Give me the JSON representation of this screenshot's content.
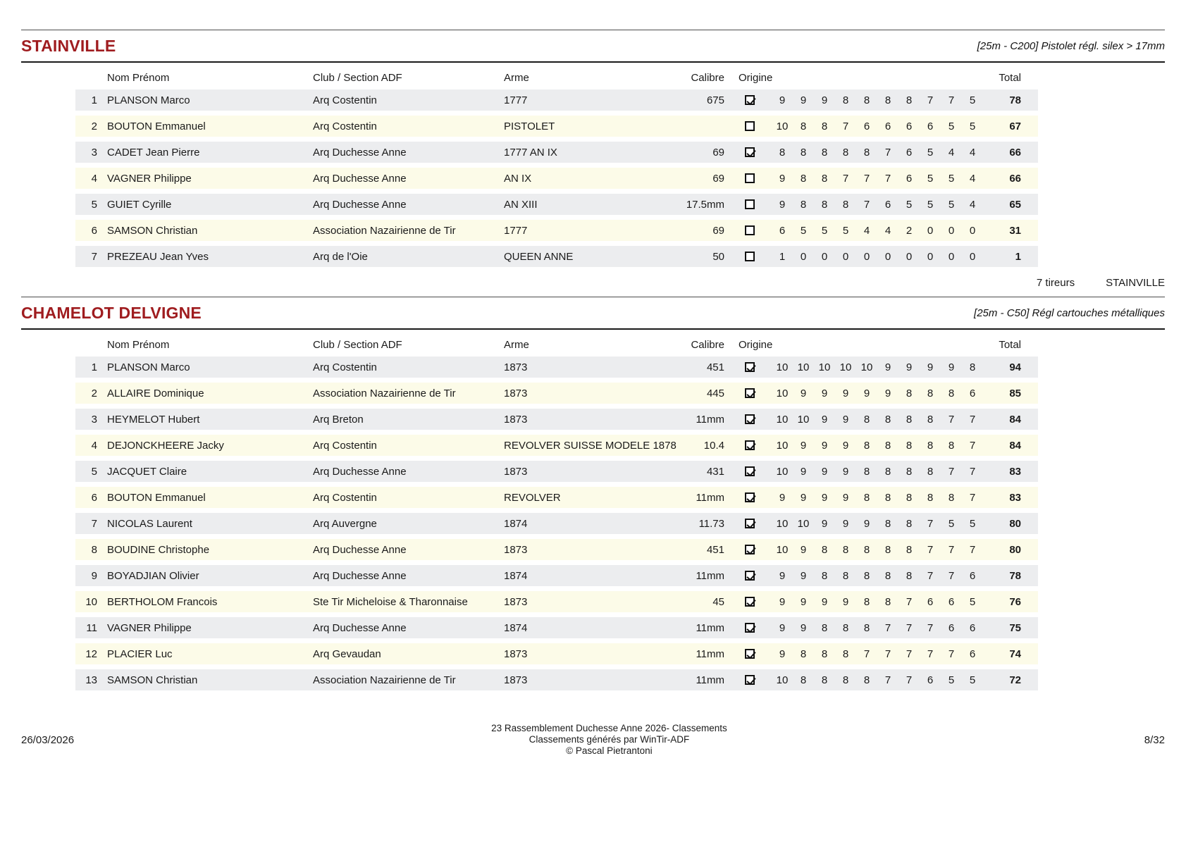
{
  "columns": {
    "rank": "",
    "name": "Nom Prénom",
    "club": "Club / Section ADF",
    "arme": "Arme",
    "calibre": "Calibre",
    "origine": "Origine",
    "total": "Total"
  },
  "colors": {
    "accent": "#9F1C1F",
    "row_odd": "#ECEDEF",
    "row_even": "#FCFBE8"
  },
  "sections": [
    {
      "title": "STAINVILLE",
      "subtitle": "[25m - C200] Pistolet régl. silex > 17mm",
      "summary": {
        "count": "7 tireurs",
        "title": "STAINVILLE"
      },
      "rows": [
        {
          "rank": "1",
          "name": "PLANSON Marco",
          "club": "Arq Costentin",
          "arme": "1777",
          "calibre": "675",
          "origine": true,
          "scores": [
            "9",
            "9",
            "9",
            "8",
            "8",
            "8",
            "8",
            "7",
            "7",
            "5"
          ],
          "total": "78"
        },
        {
          "rank": "2",
          "name": "BOUTON Emmanuel",
          "club": "Arq Costentin",
          "arme": "PISTOLET",
          "calibre": "",
          "origine": false,
          "scores": [
            "10",
            "8",
            "8",
            "7",
            "6",
            "6",
            "6",
            "6",
            "5",
            "5"
          ],
          "total": "67"
        },
        {
          "rank": "3",
          "name": "CADET Jean Pierre",
          "club": "Arq Duchesse Anne",
          "arme": "1777 AN IX",
          "calibre": "69",
          "origine": true,
          "scores": [
            "8",
            "8",
            "8",
            "8",
            "8",
            "7",
            "6",
            "5",
            "4",
            "4"
          ],
          "total": "66"
        },
        {
          "rank": "4",
          "name": "VAGNER Philippe",
          "club": "Arq Duchesse Anne",
          "arme": "AN IX",
          "calibre": "69",
          "origine": false,
          "scores": [
            "9",
            "8",
            "8",
            "7",
            "7",
            "7",
            "6",
            "5",
            "5",
            "4"
          ],
          "total": "66"
        },
        {
          "rank": "5",
          "name": "GUIET Cyrille",
          "club": "Arq Duchesse Anne",
          "arme": "AN XIII",
          "calibre": "17.5mm",
          "origine": false,
          "scores": [
            "9",
            "8",
            "8",
            "8",
            "7",
            "6",
            "5",
            "5",
            "5",
            "4"
          ],
          "total": "65"
        },
        {
          "rank": "6",
          "name": "SAMSON Christian",
          "club": "Association Nazairienne de Tir",
          "arme": "1777",
          "calibre": "69",
          "origine": false,
          "scores": [
            "6",
            "5",
            "5",
            "5",
            "4",
            "4",
            "2",
            "0",
            "0",
            "0"
          ],
          "total": "31"
        },
        {
          "rank": "7",
          "name": "PREZEAU Jean Yves",
          "club": "Arq de l'Oie",
          "arme": "QUEEN ANNE",
          "calibre": "50",
          "origine": false,
          "scores": [
            "1",
            "0",
            "0",
            "0",
            "0",
            "0",
            "0",
            "0",
            "0",
            "0"
          ],
          "total": "1"
        }
      ]
    },
    {
      "title": "CHAMELOT DELVIGNE",
      "subtitle": "[25m - C50] Régl cartouches métalliques",
      "rows": [
        {
          "rank": "1",
          "name": "PLANSON Marco",
          "club": "Arq Costentin",
          "arme": "1873",
          "calibre": "451",
          "origine": true,
          "scores": [
            "10",
            "10",
            "10",
            "10",
            "10",
            "9",
            "9",
            "9",
            "9",
            "8"
          ],
          "total": "94"
        },
        {
          "rank": "2",
          "name": "ALLAIRE Dominique",
          "club": "Association Nazairienne de Tir",
          "arme": "1873",
          "calibre": "445",
          "origine": true,
          "scores": [
            "10",
            "9",
            "9",
            "9",
            "9",
            "9",
            "8",
            "8",
            "8",
            "6"
          ],
          "total": "85"
        },
        {
          "rank": "3",
          "name": "HEYMELOT Hubert",
          "club": "Arq Breton",
          "arme": "1873",
          "calibre": "11mm",
          "origine": true,
          "scores": [
            "10",
            "10",
            "9",
            "9",
            "8",
            "8",
            "8",
            "8",
            "7",
            "7"
          ],
          "total": "84"
        },
        {
          "rank": "4",
          "name": "DEJONCKHEERE Jacky",
          "club": "Arq Costentin",
          "arme": "REVOLVER SUISSE MODELE 1878",
          "calibre": "10.4",
          "origine": true,
          "scores": [
            "10",
            "9",
            "9",
            "9",
            "8",
            "8",
            "8",
            "8",
            "8",
            "7"
          ],
          "total": "84"
        },
        {
          "rank": "5",
          "name": "JACQUET Claire",
          "club": "Arq Duchesse Anne",
          "arme": "1873",
          "calibre": "431",
          "origine": true,
          "scores": [
            "10",
            "9",
            "9",
            "9",
            "8",
            "8",
            "8",
            "8",
            "7",
            "7"
          ],
          "total": "83"
        },
        {
          "rank": "6",
          "name": "BOUTON Emmanuel",
          "club": "Arq Costentin",
          "arme": "REVOLVER",
          "calibre": "11mm",
          "origine": true,
          "scores": [
            "9",
            "9",
            "9",
            "9",
            "8",
            "8",
            "8",
            "8",
            "8",
            "7"
          ],
          "total": "83"
        },
        {
          "rank": "7",
          "name": "NICOLAS Laurent",
          "club": "Arq Auvergne",
          "arme": "1874",
          "calibre": "11.73",
          "origine": true,
          "scores": [
            "10",
            "10",
            "9",
            "9",
            "9",
            "8",
            "8",
            "7",
            "5",
            "5"
          ],
          "total": "80"
        },
        {
          "rank": "8",
          "name": "BOUDINE Christophe",
          "club": "Arq Duchesse Anne",
          "arme": "1873",
          "calibre": "451",
          "origine": true,
          "scores": [
            "10",
            "9",
            "8",
            "8",
            "8",
            "8",
            "8",
            "7",
            "7",
            "7"
          ],
          "total": "80"
        },
        {
          "rank": "9",
          "name": "BOYADJIAN Olivier",
          "club": "Arq Duchesse Anne",
          "arme": "1874",
          "calibre": "11mm",
          "origine": true,
          "scores": [
            "9",
            "9",
            "8",
            "8",
            "8",
            "8",
            "8",
            "7",
            "7",
            "6"
          ],
          "total": "78"
        },
        {
          "rank": "10",
          "name": "BERTHOLOM Francois",
          "club": "Ste Tir Micheloise & Tharonnaise",
          "arme": "1873",
          "calibre": "45",
          "origine": true,
          "scores": [
            "9",
            "9",
            "9",
            "9",
            "8",
            "8",
            "7",
            "6",
            "6",
            "5"
          ],
          "total": "76"
        },
        {
          "rank": "11",
          "name": "VAGNER Philippe",
          "club": "Arq Duchesse Anne",
          "arme": "1874",
          "calibre": "11mm",
          "origine": true,
          "scores": [
            "9",
            "9",
            "8",
            "8",
            "8",
            "7",
            "7",
            "7",
            "6",
            "6"
          ],
          "total": "75"
        },
        {
          "rank": "12",
          "name": "PLACIER Luc",
          "club": "Arq Gevaudan",
          "arme": "1873",
          "calibre": "11mm",
          "origine": true,
          "scores": [
            "9",
            "8",
            "8",
            "8",
            "7",
            "7",
            "7",
            "7",
            "7",
            "6"
          ],
          "total": "74"
        },
        {
          "rank": "13",
          "name": "SAMSON Christian",
          "club": "Association Nazairienne de Tir",
          "arme": "1873",
          "calibre": "11mm",
          "origine": true,
          "scores": [
            "10",
            "8",
            "8",
            "8",
            "8",
            "7",
            "7",
            "6",
            "5",
            "5"
          ],
          "total": "72"
        }
      ]
    }
  ],
  "footer": {
    "date": "26/03/2026",
    "line1": "23 Rassemblement Duchesse Anne 2026- Classements",
    "line2": "Classements générés par WinTir-ADF",
    "line3": "© Pascal Pietrantoni",
    "page": "8/32"
  }
}
